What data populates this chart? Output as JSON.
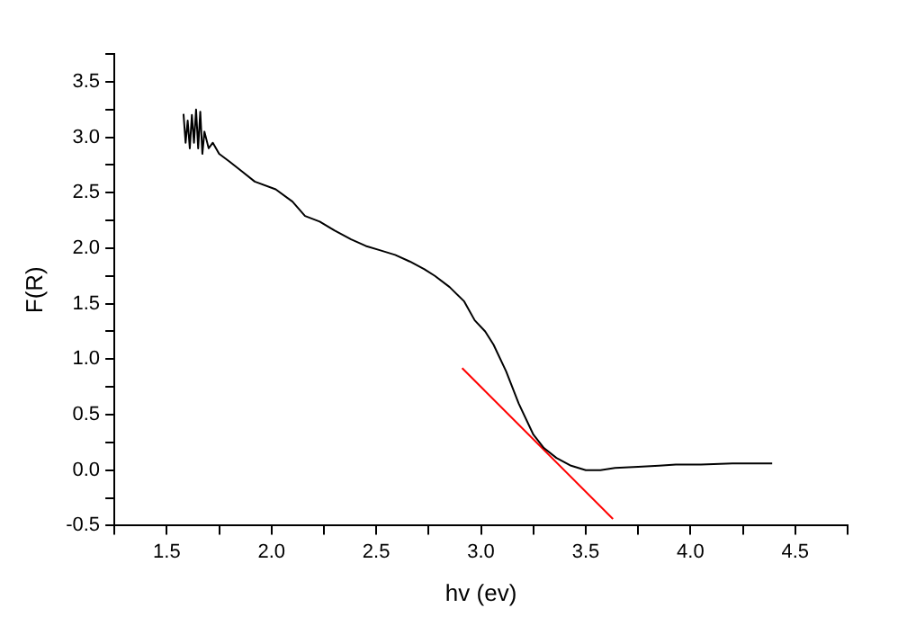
{
  "chart_data": {
    "type": "line",
    "xlabel": "hv (ev)",
    "ylabel": "F(R)",
    "xlim": [
      1.25,
      4.75
    ],
    "ylim": [
      -0.5,
      3.75
    ],
    "xticks": [
      {
        "value": 1.25,
        "label": null
      },
      {
        "value": 1.5,
        "label": "1.5"
      },
      {
        "value": 1.75,
        "label": null
      },
      {
        "value": 2,
        "label": "2.0"
      },
      {
        "value": 2.25,
        "label": null
      },
      {
        "value": 2.5,
        "label": "2.5"
      },
      {
        "value": 2.75,
        "label": null
      },
      {
        "value": 3,
        "label": "3.0"
      },
      {
        "value": 3.25,
        "label": null
      },
      {
        "value": 3.5,
        "label": "3.5"
      },
      {
        "value": 3.75,
        "label": null
      },
      {
        "value": 4,
        "label": "4.0"
      },
      {
        "value": 4.25,
        "label": null
      },
      {
        "value": 4.5,
        "label": "4.5"
      },
      {
        "value": 4.75,
        "label": null
      }
    ],
    "yticks": [
      {
        "value": -0.5,
        "label": "-0.5"
      },
      {
        "value": -0.25,
        "label": null
      },
      {
        "value": 0,
        "label": "0.0"
      },
      {
        "value": 0.25,
        "label": null
      },
      {
        "value": 0.5,
        "label": "0.5"
      },
      {
        "value": 0.75,
        "label": null
      },
      {
        "value": 1,
        "label": "1.0"
      },
      {
        "value": 1.25,
        "label": null
      },
      {
        "value": 1.5,
        "label": "1.5"
      },
      {
        "value": 1.75,
        "label": null
      },
      {
        "value": 2,
        "label": "2.0"
      },
      {
        "value": 2.25,
        "label": null
      },
      {
        "value": 2.5,
        "label": "2.5"
      },
      {
        "value": 2.75,
        "label": null
      },
      {
        "value": 3,
        "label": "3.0"
      },
      {
        "value": 3.25,
        "label": null
      },
      {
        "value": 3.5,
        "label": "3.5"
      },
      {
        "value": 3.75,
        "label": null
      }
    ],
    "grid": false,
    "legend": false,
    "marker": "none",
    "line_style": "solid",
    "series": [
      {
        "color": "#000000",
        "x": [
          1.58,
          1.59,
          1.6,
          1.61,
          1.62,
          1.63,
          1.64,
          1.65,
          1.66,
          1.67,
          1.68,
          1.7,
          1.72,
          1.75,
          1.8,
          1.86,
          1.92,
          2.02,
          2.1,
          2.16,
          2.23,
          2.3,
          2.38,
          2.45,
          2.52,
          2.59,
          2.66,
          2.73,
          2.78,
          2.85,
          2.92,
          2.97,
          3.02,
          3.06,
          3.12,
          3.18,
          3.25,
          3.3,
          3.36,
          3.43,
          3.5,
          3.57,
          3.64,
          3.75,
          3.85,
          3.93,
          4.05,
          4.2,
          4.36,
          4.39
        ],
        "values": [
          3.21,
          2.95,
          3.15,
          2.9,
          3.2,
          2.95,
          3.25,
          2.9,
          3.23,
          2.85,
          3.05,
          2.9,
          2.95,
          2.85,
          2.78,
          2.69,
          2.6,
          2.53,
          2.42,
          2.29,
          2.24,
          2.16,
          2.08,
          2.02,
          1.98,
          1.94,
          1.88,
          1.81,
          1.75,
          1.65,
          1.52,
          1.35,
          1.25,
          1.13,
          0.89,
          0.6,
          0.32,
          0.2,
          0.11,
          0.04,
          0.0,
          0.0,
          0.02,
          0.03,
          0.04,
          0.05,
          0.05,
          0.06,
          0.06,
          0.06
        ]
      },
      {
        "color": "#ff0000",
        "x": [
          2.91,
          3.63
        ],
        "values": [
          0.92,
          -0.44
        ]
      }
    ]
  }
}
